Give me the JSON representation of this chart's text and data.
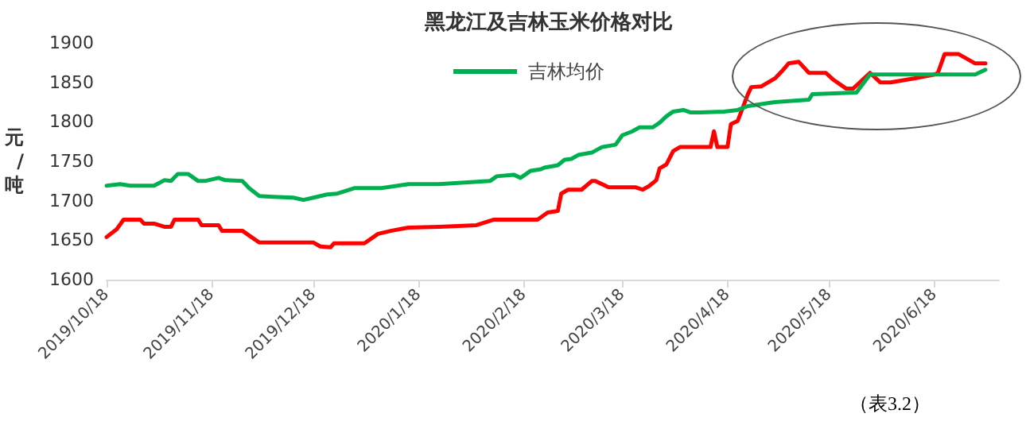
{
  "chart_data": {
    "type": "line",
    "title": "黑龙江及吉林玉米价格对比",
    "ylabel": "元/吨",
    "annotations": [
      "（表3.2）"
    ],
    "xlim": [
      "2019-10-18",
      "2020-07-07"
    ],
    "xticks": [
      {
        "value": "2019-10-18",
        "label": "2019/10/18"
      },
      {
        "value": "2019-11-18",
        "label": "2019/11/18"
      },
      {
        "value": "2019-12-18",
        "label": "2019/12/18"
      },
      {
        "value": "2020-01-18",
        "label": "2020/1/18"
      },
      {
        "value": "2020-02-18",
        "label": "2020/2/18"
      },
      {
        "value": "2020-03-18",
        "label": "2020/3/18"
      },
      {
        "value": "2020-04-18",
        "label": "2020/4/18"
      },
      {
        "value": "2020-05-18",
        "label": "2020/5/18"
      },
      {
        "value": "2020-06-18",
        "label": "2020/6/18"
      }
    ],
    "ylim": [
      1600,
      1900
    ],
    "yticks": [
      1600,
      1650,
      1700,
      1750,
      1800,
      1850,
      1900
    ],
    "grid": false,
    "legend": "top",
    "line_style": "solid",
    "series": [
      {
        "color": "#ff0000",
        "x": [
          "2019-10-18",
          "2019-10-21",
          "2019-10-23",
          "2019-10-28",
          "2019-10-29",
          "2019-11-01",
          "2019-11-04",
          "2019-11-06",
          "2019-11-07",
          "2019-11-14",
          "2019-11-15",
          "2019-11-20",
          "2019-11-21",
          "2019-11-27",
          "2019-11-29",
          "2019-12-02",
          "2019-12-18",
          "2019-12-20",
          "2019-12-23",
          "2019-12-24",
          "2020-01-02",
          "2020-01-06",
          "2020-01-10",
          "2020-01-15",
          "2020-01-24",
          "2020-02-04",
          "2020-02-09",
          "2020-02-22",
          "2020-02-25",
          "2020-02-28",
          "2020-02-29",
          "2020-03-02",
          "2020-03-06",
          "2020-03-09",
          "2020-03-10",
          "2020-03-14",
          "2020-03-22",
          "2020-03-24",
          "2020-03-26",
          "2020-03-28",
          "2020-03-29",
          "2020-03-31",
          "2020-04-02",
          "2020-04-04",
          "2020-04-13",
          "2020-04-14",
          "2020-04-15",
          "2020-04-18",
          "2020-04-19",
          "2020-04-21",
          "2020-04-24",
          "2020-04-25",
          "2020-04-28",
          "2020-05-02",
          "2020-05-04",
          "2020-05-06",
          "2020-05-09",
          "2020-05-12",
          "2020-05-17",
          "2020-05-19",
          "2020-05-23",
          "2020-05-25",
          "2020-05-30",
          "2020-06-02",
          "2020-06-05",
          "2020-06-12",
          "2020-06-18",
          "2020-06-19",
          "2020-06-21",
          "2020-06-25",
          "2020-06-30",
          "2020-07-03"
        ],
        "values": [
          1654,
          1664,
          1676,
          1676,
          1671,
          1671,
          1667,
          1667,
          1676,
          1676,
          1669,
          1669,
          1662,
          1662,
          1656,
          1647,
          1647,
          1642,
          1641,
          1646,
          1646,
          1658,
          1662,
          1666,
          1667,
          1669,
          1676,
          1676,
          1685,
          1687,
          1709,
          1714,
          1714,
          1725,
          1725,
          1717,
          1717,
          1714,
          1719,
          1726,
          1741,
          1746,
          1763,
          1768,
          1768,
          1788,
          1768,
          1768,
          1797,
          1801,
          1835,
          1844,
          1845,
          1855,
          1864,
          1874,
          1876,
          1862,
          1862,
          1854,
          1842,
          1842,
          1862,
          1850,
          1850,
          1855,
          1860,
          1862,
          1886,
          1886,
          1874,
          1874
        ]
      },
      {
        "name": "吉林均价",
        "color": "#00b050",
        "x": [
          "2019-10-18",
          "2019-10-22",
          "2019-10-25",
          "2019-11-01",
          "2019-11-04",
          "2019-11-06",
          "2019-11-08",
          "2019-11-11",
          "2019-11-14",
          "2019-11-16",
          "2019-11-20",
          "2019-11-22",
          "2019-11-27",
          "2019-11-29",
          "2019-12-02",
          "2019-12-06",
          "2019-12-12",
          "2019-12-15",
          "2019-12-18",
          "2019-12-22",
          "2019-12-25",
          "2019-12-30",
          "2020-01-07",
          "2020-01-15",
          "2020-01-24",
          "2020-02-08",
          "2020-02-10",
          "2020-02-15",
          "2020-02-17",
          "2020-02-20",
          "2020-02-23",
          "2020-02-24",
          "2020-02-28",
          "2020-03-01",
          "2020-03-03",
          "2020-03-05",
          "2020-03-09",
          "2020-03-12",
          "2020-03-16",
          "2020-03-18",
          "2020-03-21",
          "2020-03-23",
          "2020-03-27",
          "2020-03-29",
          "2020-03-31",
          "2020-04-02",
          "2020-04-05",
          "2020-04-07",
          "2020-04-10",
          "2020-04-17",
          "2020-04-21",
          "2020-04-24",
          "2020-05-02",
          "2020-05-12",
          "2020-05-13",
          "2020-05-26",
          "2020-05-30",
          "2020-06-30",
          "2020-07-03"
        ],
        "values": [
          1719,
          1721,
          1719,
          1719,
          1726,
          1725,
          1734,
          1734,
          1725,
          1725,
          1729,
          1726,
          1725,
          1716,
          1706,
          1705,
          1704,
          1701,
          1704,
          1708,
          1709,
          1716,
          1716,
          1721,
          1721,
          1725,
          1731,
          1733,
          1729,
          1738,
          1740,
          1742,
          1745,
          1752,
          1753,
          1758,
          1761,
          1768,
          1771,
          1783,
          1788,
          1793,
          1793,
          1799,
          1807,
          1813,
          1815,
          1812,
          1812,
          1813,
          1815,
          1820,
          1825,
          1828,
          1835,
          1837,
          1860,
          1860,
          1866
        ]
      }
    ]
  }
}
